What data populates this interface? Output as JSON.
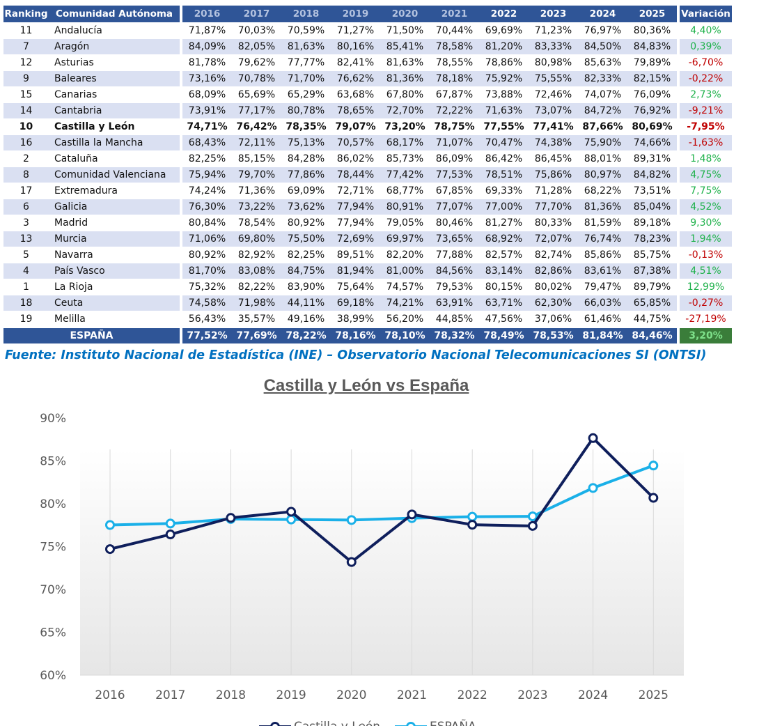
{
  "table": {
    "headers": {
      "ranking": "Ranking",
      "region": "Comunidad Autónoma",
      "years": [
        "2016",
        "2017",
        "2018",
        "2019",
        "2020",
        "2021",
        "2022",
        "2023",
        "2024",
        "2025"
      ],
      "variation": "Variación"
    },
    "rows": [
      {
        "rank": "11",
        "name": "Andalucía",
        "values": [
          "71,87%",
          "70,03%",
          "70,59%",
          "71,27%",
          "71,50%",
          "70,44%",
          "69,69%",
          "71,23%",
          "76,97%",
          "80,36%"
        ],
        "variation": "4,40%"
      },
      {
        "rank": "7",
        "name": "Aragón",
        "values": [
          "84,09%",
          "82,05%",
          "81,63%",
          "80,16%",
          "85,41%",
          "78,58%",
          "81,20%",
          "83,33%",
          "84,50%",
          "84,83%"
        ],
        "variation": "0,39%"
      },
      {
        "rank": "12",
        "name": "Asturias",
        "values": [
          "81,78%",
          "79,62%",
          "77,77%",
          "82,41%",
          "81,63%",
          "78,55%",
          "78,86%",
          "80,98%",
          "85,63%",
          "79,89%"
        ],
        "variation": "-6,70%"
      },
      {
        "rank": "9",
        "name": "Baleares",
        "values": [
          "73,16%",
          "70,78%",
          "71,70%",
          "76,62%",
          "81,36%",
          "78,18%",
          "75,92%",
          "75,55%",
          "82,33%",
          "82,15%"
        ],
        "variation": "-0,22%"
      },
      {
        "rank": "15",
        "name": "Canarias",
        "values": [
          "68,09%",
          "65,69%",
          "65,29%",
          "63,68%",
          "67,80%",
          "67,87%",
          "73,88%",
          "72,46%",
          "74,07%",
          "76,09%"
        ],
        "variation": "2,73%"
      },
      {
        "rank": "14",
        "name": "Cantabria",
        "values": [
          "73,91%",
          "77,17%",
          "80,78%",
          "78,65%",
          "72,70%",
          "72,22%",
          "71,63%",
          "73,07%",
          "84,72%",
          "76,92%"
        ],
        "variation": "-9,21%"
      },
      {
        "rank": "10",
        "name": "Castilla y León",
        "values": [
          "74,71%",
          "76,42%",
          "78,35%",
          "79,07%",
          "73,20%",
          "78,75%",
          "77,55%",
          "77,41%",
          "87,66%",
          "80,69%"
        ],
        "variation": "-7,95%",
        "bold": true
      },
      {
        "rank": "16",
        "name": "Castilla la Mancha",
        "values": [
          "68,43%",
          "72,11%",
          "75,13%",
          "70,57%",
          "68,17%",
          "71,07%",
          "70,47%",
          "74,38%",
          "75,90%",
          "74,66%"
        ],
        "variation": "-1,63%"
      },
      {
        "rank": "2",
        "name": "Cataluña",
        "values": [
          "82,25%",
          "85,15%",
          "84,28%",
          "86,02%",
          "85,73%",
          "86,09%",
          "86,42%",
          "86,45%",
          "88,01%",
          "89,31%"
        ],
        "variation": "1,48%"
      },
      {
        "rank": "8",
        "name": "Comunidad Valenciana",
        "values": [
          "75,94%",
          "79,70%",
          "77,86%",
          "78,44%",
          "77,42%",
          "77,53%",
          "78,51%",
          "75,86%",
          "80,97%",
          "84,82%"
        ],
        "variation": "4,75%"
      },
      {
        "rank": "17",
        "name": "Extremadura",
        "values": [
          "74,24%",
          "71,36%",
          "69,09%",
          "72,71%",
          "68,77%",
          "67,85%",
          "69,33%",
          "71,28%",
          "68,22%",
          "73,51%"
        ],
        "variation": "7,75%"
      },
      {
        "rank": "6",
        "name": "Galicia",
        "values": [
          "76,30%",
          "73,22%",
          "73,62%",
          "77,94%",
          "80,91%",
          "77,07%",
          "77,00%",
          "77,70%",
          "81,36%",
          "85,04%"
        ],
        "variation": "4,52%"
      },
      {
        "rank": "3",
        "name": "Madrid",
        "values": [
          "80,84%",
          "78,54%",
          "80,92%",
          "77,94%",
          "79,05%",
          "80,46%",
          "81,27%",
          "80,33%",
          "81,59%",
          "89,18%"
        ],
        "variation": "9,30%"
      },
      {
        "rank": "13",
        "name": "Murcia",
        "values": [
          "71,06%",
          "69,80%",
          "75,50%",
          "72,69%",
          "69,97%",
          "73,65%",
          "68,92%",
          "72,07%",
          "76,74%",
          "78,23%"
        ],
        "variation": "1,94%"
      },
      {
        "rank": "5",
        "name": "Navarra",
        "values": [
          "80,92%",
          "82,92%",
          "82,25%",
          "89,51%",
          "82,20%",
          "77,88%",
          "82,57%",
          "82,74%",
          "85,86%",
          "85,75%"
        ],
        "variation": "-0,13%"
      },
      {
        "rank": "4",
        "name": "País Vasco",
        "values": [
          "81,70%",
          "83,08%",
          "84,75%",
          "81,94%",
          "81,00%",
          "84,56%",
          "83,14%",
          "82,86%",
          "83,61%",
          "87,38%"
        ],
        "variation": "4,51%"
      },
      {
        "rank": "1",
        "name": "La Rioja",
        "values": [
          "75,32%",
          "82,22%",
          "83,90%",
          "75,64%",
          "74,57%",
          "79,53%",
          "80,15%",
          "80,02%",
          "79,47%",
          "89,79%"
        ],
        "variation": "12,99%"
      },
      {
        "rank": "18",
        "name": "Ceuta",
        "values": [
          "74,58%",
          "71,98%",
          "44,11%",
          "69,18%",
          "74,21%",
          "63,91%",
          "63,71%",
          "62,30%",
          "66,03%",
          "65,85%"
        ],
        "variation": "-0,27%"
      },
      {
        "rank": "19",
        "name": "Melilla",
        "values": [
          "56,43%",
          "35,57%",
          "49,16%",
          "38,99%",
          "56,20%",
          "44,85%",
          "47,56%",
          "37,06%",
          "61,46%",
          "44,75%"
        ],
        "variation": "-27,19%"
      }
    ],
    "total": {
      "name": "ESPAÑA",
      "values": [
        "77,52%",
        "77,69%",
        "78,22%",
        "78,16%",
        "78,10%",
        "78,32%",
        "78,49%",
        "78,53%",
        "81,84%",
        "84,46%"
      ],
      "variation": "3,20%"
    }
  },
  "source": "Fuente: Instituto Nacional de Estadística (INE) – Observatorio Nacional Telecomunicaciones SI (ONTSI)",
  "chart_data": {
    "type": "line",
    "title": "Castilla y León vs España",
    "categories": [
      "2016",
      "2017",
      "2018",
      "2019",
      "2020",
      "2021",
      "2022",
      "2023",
      "2024",
      "2025"
    ],
    "series": [
      {
        "name": "Castilla y León",
        "values": [
          74.71,
          76.42,
          78.35,
          79.07,
          73.2,
          78.75,
          77.55,
          77.41,
          87.66,
          80.69
        ],
        "color": "#0f1f5c"
      },
      {
        "name": "ESPAÑA",
        "values": [
          77.52,
          77.69,
          78.22,
          78.16,
          78.1,
          78.32,
          78.49,
          78.53,
          81.84,
          84.46
        ],
        "color": "#1ab0e8"
      }
    ],
    "ylim": [
      60,
      90
    ],
    "yticks": [
      "60%",
      "65%",
      "70%",
      "75%",
      "80%",
      "85%",
      "90%"
    ],
    "grid": "vertical",
    "legend": "bottom"
  }
}
